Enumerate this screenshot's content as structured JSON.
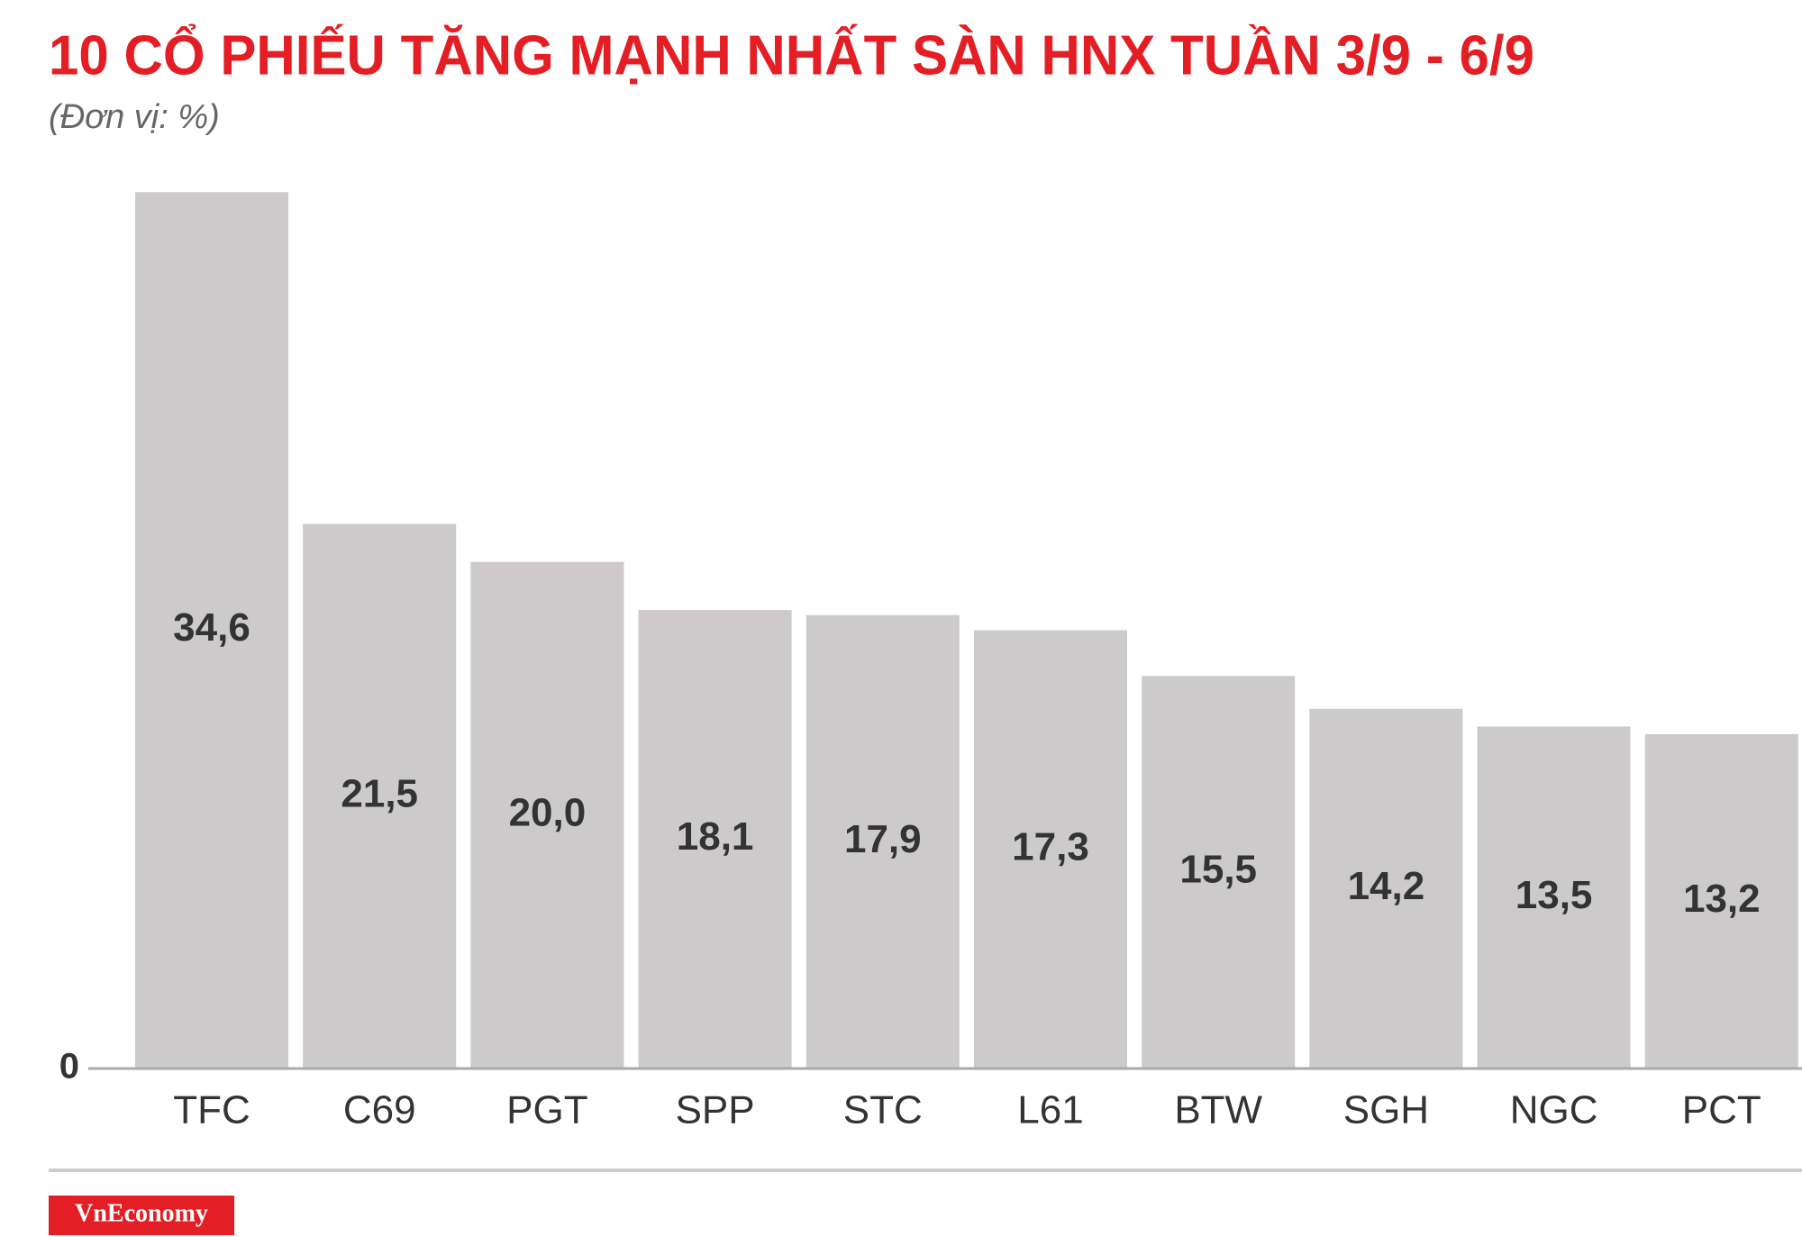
{
  "chart_data": {
    "type": "bar",
    "title": "10 CỔ PHIẾU TĂNG MẠNH NHẤT SÀN HNX TUẦN 3/9 - 6/9",
    "subtitle": "(Đơn vị: %)",
    "categories": [
      "TFC",
      "C69",
      "PGT",
      "SPP",
      "STC",
      "L61",
      "BTW",
      "SGH",
      "NGC",
      "PCT"
    ],
    "values": [
      34.6,
      21.5,
      20.0,
      18.1,
      17.9,
      17.3,
      15.5,
      14.2,
      13.5,
      13.2
    ],
    "value_labels": [
      "34,6",
      "21,5",
      "20,0",
      "18,1",
      "17,9",
      "17,3",
      "15,5",
      "14,2",
      "13,5",
      "13,2"
    ],
    "color": "#cccaca",
    "ylim": [
      0,
      35
    ],
    "yticks": [
      0
    ],
    "grid": false,
    "source": "VnEconomy"
  }
}
